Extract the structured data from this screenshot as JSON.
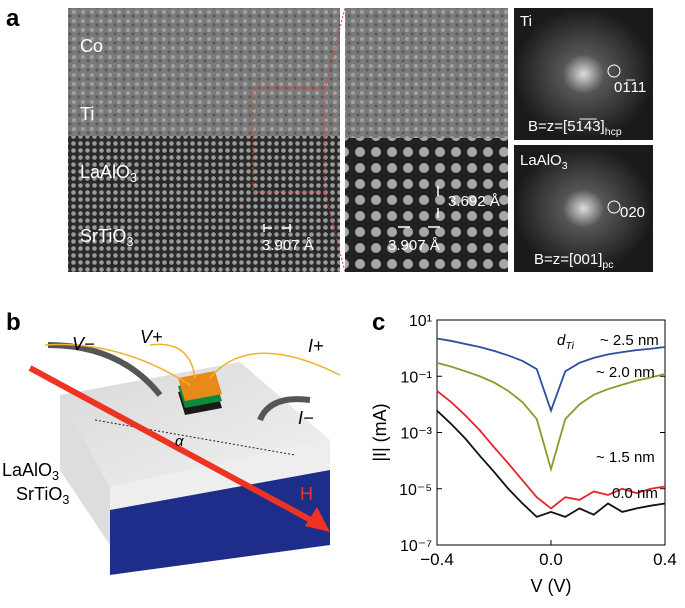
{
  "panels": {
    "a": {
      "label": "a",
      "stem": [
        {
          "text": "Co"
        },
        {
          "text": "Ti"
        },
        {
          "text": "LaAlO",
          "sub": "3"
        },
        {
          "text": "SrTiO",
          "sub": "3"
        }
      ],
      "spacing_left": "3.907 Å",
      "spacing_mid_h": "3.907 Å",
      "spacing_mid_v": "3.692 Å",
      "fft_top": {
        "title": "Ti",
        "spot": "01̅11",
        "zone": {
          "text": "B=z=[51̅4̅3]",
          "sub": "hcp"
        }
      },
      "fft_bottom": {
        "title": {
          "text": "LaAlO",
          "sub": "3"
        },
        "spot": "020",
        "zone": {
          "text": "B=z=[001]",
          "sub": "pc"
        }
      }
    },
    "b": {
      "label": "b",
      "v_minus": "V−",
      "v_plus": "V+",
      "i_plus": "I+",
      "i_minus": "I−",
      "angle": "α",
      "field": "H",
      "layer_top": {
        "text": "LaAlO",
        "sub": "3"
      },
      "layer_bottom": {
        "text": "SrTiO",
        "sub": "3"
      }
    }
  },
  "chart_data": {
    "type": "line",
    "panel_label": "c",
    "x_label": "V (V)",
    "y_label": "|I| (mA)",
    "legend_prefix": {
      "text": "d",
      "sub": "Ti"
    },
    "yscale": "log",
    "xlim": [
      -0.4,
      0.4
    ],
    "xticks": [
      {
        "value": -0.4,
        "label": "−0.4"
      },
      {
        "value": 0,
        "label": "0.0"
      },
      0.4
    ],
    "ylim": [
      1e-07,
      10
    ],
    "yticks": [
      {
        "value": 1e-07,
        "label": "10⁻⁷"
      },
      {
        "value": 1e-05,
        "label": "10⁻⁵"
      },
      {
        "value": 0.001,
        "label": "10⁻³"
      },
      {
        "value": 0.1,
        "label": "10⁻¹"
      },
      {
        "value": 10,
        "label": "10¹"
      }
    ],
    "x": [
      -0.4,
      -0.35,
      -0.3,
      -0.25,
      -0.2,
      -0.15,
      -0.1,
      -0.05,
      0,
      0.05,
      0.1,
      0.15,
      0.2,
      0.25,
      0.3,
      0.35,
      0.4
    ],
    "series": [
      {
        "name": "~ 2.5 nm",
        "color": "#2b4f9e",
        "values": [
          2.2,
          1.8,
          1.4,
          1.1,
          0.8,
          0.55,
          0.35,
          0.18,
          0.006,
          0.15,
          0.3,
          0.45,
          0.6,
          0.72,
          0.85,
          0.95,
          1.1
        ]
      },
      {
        "name": "~ 2.0 nm",
        "color": "#8c9a2c",
        "values": [
          0.3,
          0.22,
          0.15,
          0.1,
          0.06,
          0.03,
          0.012,
          0.003,
          5e-05,
          0.003,
          0.01,
          0.022,
          0.035,
          0.05,
          0.07,
          0.09,
          0.12
        ]
      },
      {
        "name": "~ 1.5 nm",
        "color": "#e5232a",
        "values": [
          0.03,
          0.012,
          0.004,
          0.0012,
          0.0003,
          8e-05,
          2e-05,
          5e-06,
          2e-06,
          5e-06,
          4e-06,
          8e-06,
          6e-06,
          1e-05,
          7e-06,
          1e-05,
          1.2e-05
        ]
      },
      {
        "name": "0.0 nm",
        "color": "#111111",
        "values": [
          0.006,
          0.002,
          0.0006,
          0.00015,
          4e-05,
          1e-05,
          3e-06,
          1e-06,
          1.5e-06,
          1e-06,
          2e-06,
          1.2e-06,
          3e-06,
          1.5e-06,
          2e-06,
          2.5e-06,
          3e-06
        ]
      }
    ]
  }
}
